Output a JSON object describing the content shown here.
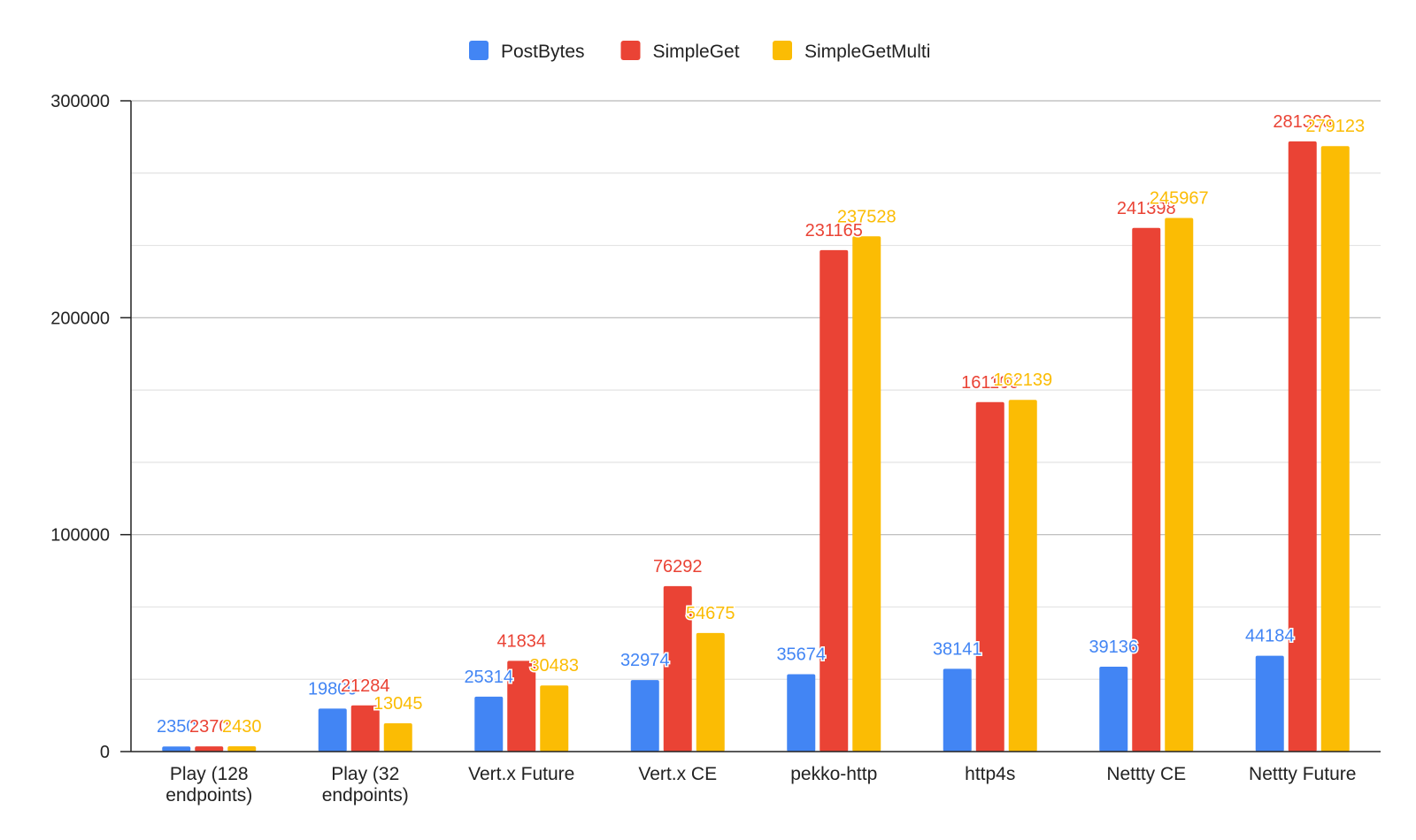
{
  "chart_data": {
    "type": "bar",
    "title": "",
    "xlabel": "",
    "ylabel": "",
    "ylim": [
      0,
      300000
    ],
    "yticks": [
      "0",
      "100000",
      "200000",
      "300000"
    ],
    "grid": true,
    "legend_position": "top",
    "categories": [
      [
        "Play (128",
        "endpoints)"
      ],
      [
        "Play (32",
        "endpoints)"
      ],
      [
        "Vert.x Future"
      ],
      [
        "Vert.x CE"
      ],
      [
        "pekko-http"
      ],
      [
        "http4s"
      ],
      [
        "Nettty CE"
      ],
      [
        "Nettty Future"
      ]
    ],
    "series": [
      {
        "name": "PostBytes",
        "color": "#4285f4",
        "values": [
          2350,
          19800,
          25314,
          32974,
          35674,
          38141,
          39136,
          44184
        ]
      },
      {
        "name": "SimpleGet",
        "color": "#ea4335",
        "values": [
          2370,
          21284,
          41834,
          76292,
          231165,
          161100,
          241398,
          281300
        ]
      },
      {
        "name": "SimpleGetMulti",
        "color": "#fbbc04",
        "values": [
          2430,
          13045,
          30483,
          54675,
          237528,
          162139,
          245967,
          279123
        ]
      }
    ]
  }
}
